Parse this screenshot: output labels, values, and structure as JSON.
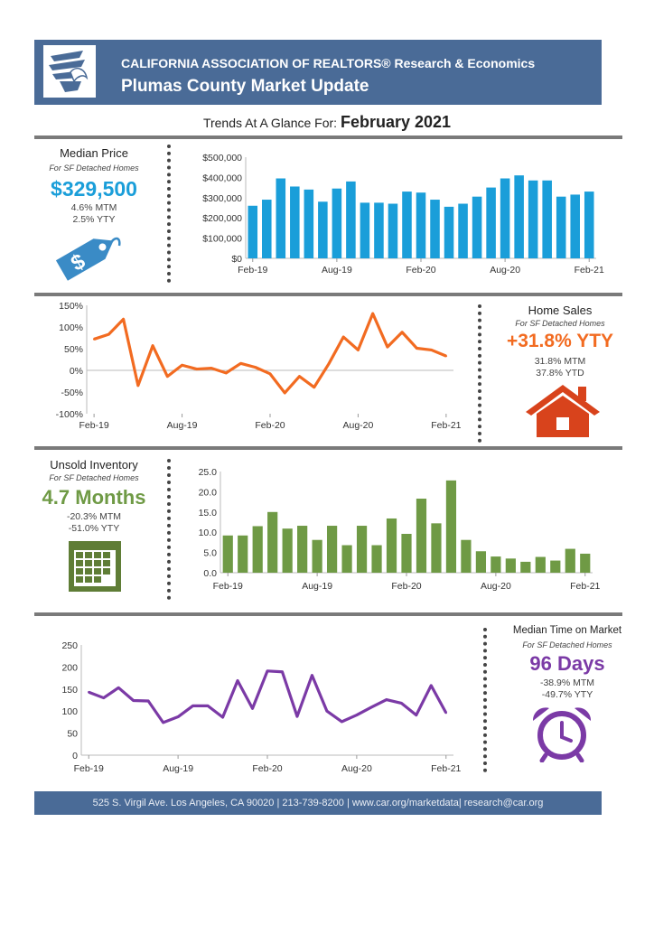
{
  "header": {
    "title_line1": "CALIFORNIA ASSOCIATION OF REALTORS® Research & Economics",
    "title_line2": "Plumas County Market Update"
  },
  "trends": {
    "label": "Trends At A Glance For:",
    "period": "February 2021"
  },
  "median_price": {
    "title": "Median Price",
    "subtitle": "For SF Detached Homes",
    "value": "$329,500",
    "mtm": "4.6% MTM",
    "yty": "2.5% YTY",
    "color": "#1a9ed9",
    "icon": "price-tag-icon"
  },
  "home_sales": {
    "title": "Home Sales",
    "subtitle": "For SF Detached Homes",
    "value": "+31.8% YTY",
    "mtm": "31.8% MTM",
    "ytd": "37.8% YTD",
    "color": "#f26b21",
    "icon": "house-icon"
  },
  "unsold_inventory": {
    "title": "Unsold Inventory",
    "subtitle": "For SF Detached Homes",
    "value": "4.7 Months",
    "mtm": "-20.3% MTM",
    "yty": "-51.0% YTY",
    "color": "#6f9a45",
    "icon": "calendar-icon"
  },
  "time_on_market": {
    "title": "Median Time on Market",
    "subtitle": "For SF Detached Homes",
    "value": "96 Days",
    "mtm": "-38.9% MTM",
    "yty": "-49.7% YTY",
    "color": "#7b3aa6",
    "icon": "alarm-clock-icon"
  },
  "footer": {
    "text": "525 S. Virgil Ave. Los Angeles, CA 90020 | 213-739-8200 | www.car.org/marketdata| research@car.org"
  },
  "chart_data": [
    {
      "id": "median-price",
      "type": "bar",
      "color": "#1a9ed9",
      "x_ticks": [
        "Feb-19",
        "Aug-19",
        "Feb-20",
        "Aug-20",
        "Feb-21"
      ],
      "y_ticks": [
        "$0",
        "$100,000",
        "$200,000",
        "$300,000",
        "$400,000",
        "$500,000"
      ],
      "ylim": [
        0,
        500000
      ],
      "values": [
        260000,
        290000,
        395000,
        355000,
        340000,
        280000,
        345000,
        380000,
        275000,
        275000,
        270000,
        330000,
        325000,
        290000,
        255000,
        270000,
        305000,
        350000,
        395000,
        410000,
        385000,
        385000,
        305000,
        315000,
        330000
      ]
    },
    {
      "id": "home-sales",
      "type": "line",
      "color": "#f26b21",
      "x_ticks": [
        "Feb-19",
        "Aug-19",
        "Feb-20",
        "Aug-20",
        "Feb-21"
      ],
      "y_ticks": [
        "-100%",
        "-50%",
        "0%",
        "50%",
        "100%",
        "150%"
      ],
      "ylim": [
        -100,
        150
      ],
      "values": [
        72,
        83,
        118,
        -35,
        57,
        -14,
        12,
        3,
        5,
        -6,
        16,
        7,
        -8,
        -52,
        -14,
        -39,
        15,
        77,
        47,
        131,
        54,
        88,
        51,
        47,
        33
      ]
    },
    {
      "id": "unsold-inventory",
      "type": "bar",
      "color": "#6f9a45",
      "x_ticks": [
        "Feb-19",
        "Aug-19",
        "Feb-20",
        "Aug-20",
        "Feb-21"
      ],
      "y_ticks": [
        "0.0",
        "5.0",
        "10.0",
        "15.0",
        "20.0",
        "25.0"
      ],
      "ylim": [
        0,
        25
      ],
      "values": [
        9.2,
        9.2,
        11.5,
        15.0,
        10.9,
        11.6,
        8.1,
        11.6,
        6.8,
        11.6,
        6.8,
        13.4,
        9.6,
        18.3,
        12.2,
        22.8,
        8.1,
        5.3,
        4.0,
        3.5,
        2.7,
        3.9,
        3.0,
        5.9,
        4.7
      ]
    },
    {
      "id": "time-on-market",
      "type": "line",
      "color": "#7b3aa6",
      "x_ticks": [
        "Feb-19",
        "Aug-19",
        "Feb-20",
        "Aug-20",
        "Feb-21"
      ],
      "y_ticks": [
        "0",
        "50",
        "100",
        "150",
        "200",
        "250"
      ],
      "ylim": [
        0,
        250
      ],
      "values": [
        143,
        130,
        153,
        124,
        123,
        74,
        87,
        112,
        112,
        86,
        169,
        106,
        191,
        189,
        88,
        181,
        100,
        76,
        91,
        109,
        126,
        118,
        91,
        158,
        96
      ]
    }
  ]
}
